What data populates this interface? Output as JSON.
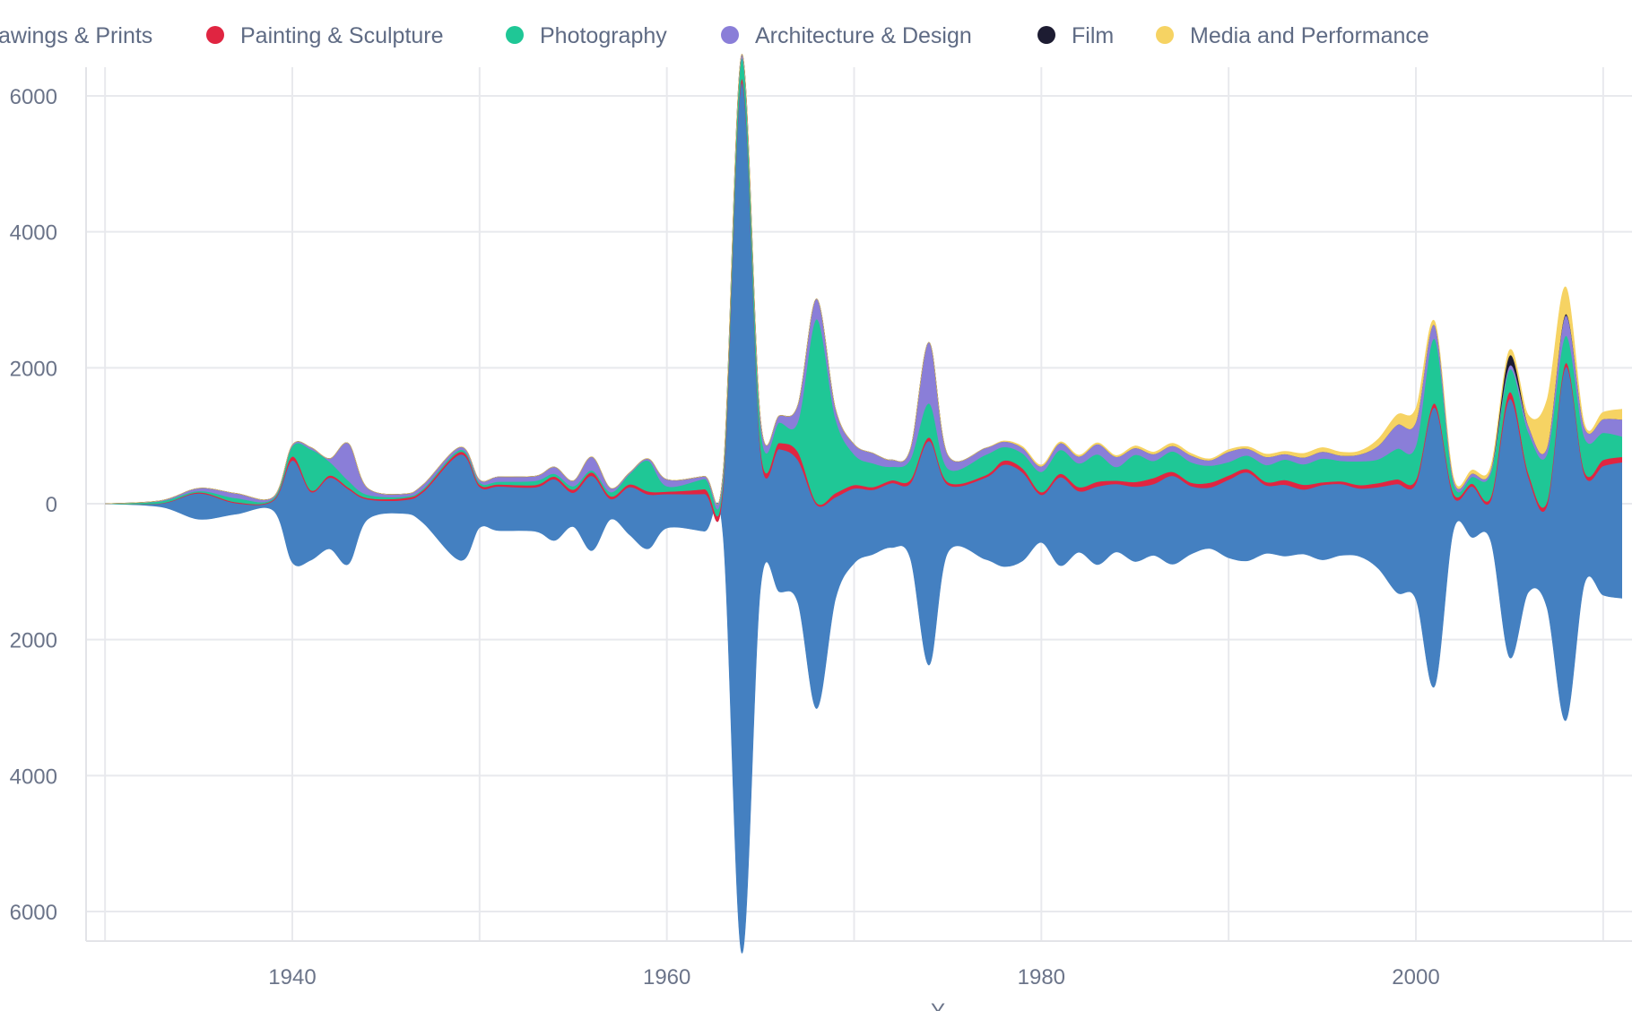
{
  "chart_data": {
    "type": "area",
    "subtype": "streamgraph",
    "xlim": [
      1928,
      2012
    ],
    "ylim": [
      -6400,
      6400
    ],
    "x_ticks": [
      1940,
      1960,
      1980,
      2000
    ],
    "x_tick_labels": [
      "1940",
      "1960",
      "1980",
      "2000"
    ],
    "y_ticks": [
      6000,
      4000,
      2000,
      0,
      -2000,
      -4000,
      -6000
    ],
    "y_tick_labels": [
      "6000",
      "4000",
      "2000",
      "0",
      "2000",
      "4000",
      "6000"
    ],
    "xlabel": "Y",
    "grid": true,
    "legend_position": "top",
    "legend": [
      {
        "label": "awings & Prints",
        "color": "#4480c1"
      },
      {
        "label": "Painting & Sculpture",
        "color": "#e02541"
      },
      {
        "label": "Photography",
        "color": "#1fc796"
      },
      {
        "label": "Architecture & Design",
        "color": "#8a7ed8"
      },
      {
        "label": "Film",
        "color": "#1d1c32"
      },
      {
        "label": "Media and Performance",
        "color": "#f6d363"
      }
    ],
    "x": [
      1930,
      1933,
      1935,
      1937,
      1939,
      1940,
      1941,
      1942,
      1943,
      1944,
      1946,
      1947,
      1949,
      1950,
      1951,
      1953,
      1954,
      1955,
      1956,
      1957,
      1958,
      1959,
      1960,
      1962,
      1963,
      1964,
      1965,
      1966,
      1967,
      1968,
      1969,
      1970,
      1971,
      1972,
      1973,
      1974,
      1975,
      1977,
      1978,
      1979,
      1980,
      1981,
      1982,
      1983,
      1984,
      1985,
      1986,
      1987,
      1988,
      1989,
      1990,
      1991,
      1992,
      1993,
      1994,
      1995,
      1996,
      1997,
      1998,
      1999,
      2000,
      2001,
      2002,
      2003,
      2004,
      2005,
      2006,
      2007,
      2008,
      2009,
      2010,
      2011
    ],
    "series": [
      {
        "name": "awings & Prints",
        "color": "#4480c1",
        "values": [
          0,
          50,
          380,
          160,
          150,
          1500,
          1000,
          1050,
          1100,
          300,
          200,
          460,
          1560,
          600,
          650,
          650,
          900,
          500,
          1100,
          300,
          700,
          800,
          500,
          550,
          650,
          12800,
          2000,
          2100,
          2100,
          3000,
          1500,
          1100,
          950,
          950,
          1100,
          3300,
          1000,
          1200,
          1500,
          1300,
          700,
          1300,
          900,
          1150,
          1000,
          1100,
          1050,
          1300,
          1000,
          900,
          1150,
          1300,
          1000,
          1050,
          950,
          1100,
          1050,
          1000,
          1200,
          1600,
          1700,
          4100,
          500,
          750,
          600,
          3800,
          1700,
          1500,
          5200,
          1600,
          1900,
          2000
        ]
      },
      {
        "name": "Painting & Sculpture",
        "color": "#e02541",
        "values": [
          0,
          5,
          15,
          15,
          15,
          60,
          25,
          30,
          25,
          20,
          30,
          30,
          40,
          35,
          30,
          35,
          40,
          45,
          50,
          40,
          40,
          45,
          35,
          70,
          80,
          60,
          70,
          90,
          120,
          30,
          60,
          50,
          40,
          40,
          50,
          50,
          40,
          35,
          60,
          60,
          40,
          50,
          60,
          70,
          50,
          70,
          90,
          60,
          50,
          70,
          60,
          50,
          50,
          70,
          70,
          40,
          40,
          50,
          60,
          70,
          60,
          60,
          50,
          40,
          50,
          100,
          60,
          60,
          60,
          50,
          90,
          80
        ]
      },
      {
        "name": "Photography",
        "color": "#1fc796",
        "values": [
          0,
          30,
          20,
          60,
          20,
          150,
          600,
          200,
          100,
          50,
          20,
          20,
          30,
          30,
          40,
          60,
          40,
          50,
          30,
          60,
          150,
          450,
          80,
          150,
          100,
          300,
          300,
          300,
          450,
          2700,
          1100,
          450,
          350,
          200,
          300,
          500,
          200,
          300,
          200,
          220,
          300,
          350,
          350,
          400,
          200,
          400,
          250,
          300,
          300,
          250,
          200,
          200,
          250,
          300,
          300,
          350,
          300,
          350,
          350,
          450,
          500,
          950,
          150,
          100,
          350,
          330,
          600,
          700,
          400,
          500,
          400,
          300
        ]
      },
      {
        "name": "Architecture & Design",
        "color": "#8a7ed8",
        "values": [
          0,
          10,
          40,
          70,
          20,
          20,
          30,
          50,
          550,
          100,
          40,
          60,
          40,
          40,
          70,
          70,
          100,
          80,
          200,
          60,
          20,
          30,
          100,
          40,
          80,
          60,
          120,
          100,
          250,
          300,
          150,
          150,
          150,
          100,
          150,
          900,
          200,
          100,
          80,
          80,
          80,
          100,
          100,
          150,
          150,
          100,
          100,
          80,
          100,
          80,
          150,
          100,
          120,
          80,
          100,
          100,
          80,
          100,
          200,
          350,
          350,
          200,
          60,
          50,
          50,
          60,
          100,
          100,
          300,
          150,
          200,
          250
        ]
      },
      {
        "name": "Film",
        "color": "#1d1c32",
        "values": [
          0,
          0,
          0,
          0,
          0,
          0,
          0,
          0,
          0,
          0,
          0,
          0,
          0,
          0,
          0,
          0,
          0,
          0,
          0,
          0,
          0,
          0,
          0,
          0,
          0,
          0,
          0,
          0,
          0,
          0,
          0,
          0,
          0,
          0,
          0,
          0,
          0,
          0,
          0,
          0,
          0,
          0,
          0,
          0,
          0,
          0,
          0,
          0,
          0,
          0,
          0,
          0,
          0,
          0,
          0,
          0,
          0,
          0,
          0,
          0,
          0,
          0,
          0,
          0,
          0,
          150,
          0,
          0,
          20,
          0,
          0,
          0
        ]
      },
      {
        "name": "Media and Performance",
        "color": "#f6d363",
        "values": [
          0,
          0,
          0,
          0,
          0,
          0,
          0,
          0,
          0,
          0,
          0,
          0,
          0,
          0,
          0,
          0,
          0,
          0,
          0,
          0,
          0,
          0,
          0,
          0,
          0,
          0,
          0,
          0,
          0,
          0,
          0,
          0,
          0,
          0,
          0,
          0,
          0,
          0,
          10,
          20,
          20,
          20,
          20,
          20,
          20,
          30,
          30,
          40,
          30,
          20,
          30,
          30,
          40,
          40,
          60,
          60,
          50,
          50,
          100,
          150,
          200,
          60,
          30,
          50,
          50,
          80,
          150,
          700,
          400,
          50,
          100,
          150
        ]
      }
    ]
  }
}
